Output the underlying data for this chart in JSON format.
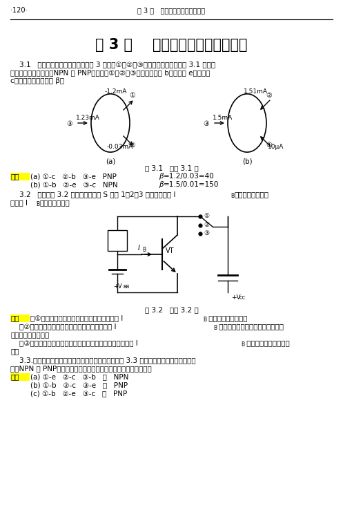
{
  "page_num": "·120·",
  "header_text": "第 3 章   晶体三极管及其放大电路",
  "chapter_title": "第 3 章    晶体三极管及其放大电路",
  "bg_color": "#ffffff",
  "highlight_color": "#ffff00"
}
